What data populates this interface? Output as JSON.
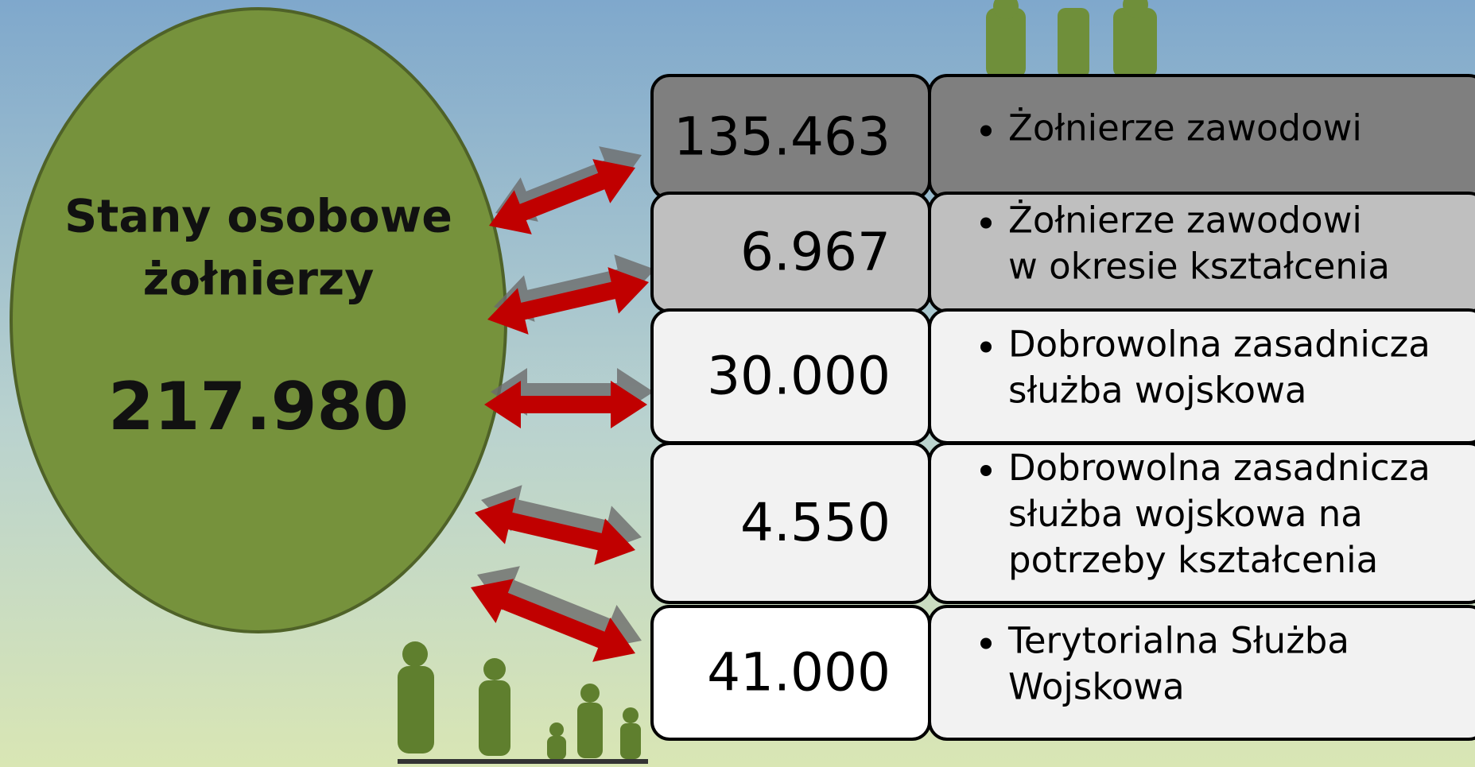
{
  "title": [
    "Stany osobowe",
    "żołnierzy"
  ],
  "total": "217.980",
  "rows": [
    {
      "value": "135.463",
      "label": [
        "Żołnierze zawodowi"
      ]
    },
    {
      "value": "6.967",
      "label": [
        "Żołnierze zawodowi",
        "w okresie kształcenia"
      ]
    },
    {
      "value": "30.000",
      "label": [
        "Dobrowolna zasadnicza",
        "służba wojskowa"
      ]
    },
    {
      "value": "4.550",
      "label": [
        "Dobrowolna zasadnicza",
        "służba wojskowa na",
        "potrzeby kształcenia"
      ]
    },
    {
      "value": "41.000",
      "label": [
        "Terytorialna Służba",
        "Wojskowa"
      ]
    }
  ]
}
